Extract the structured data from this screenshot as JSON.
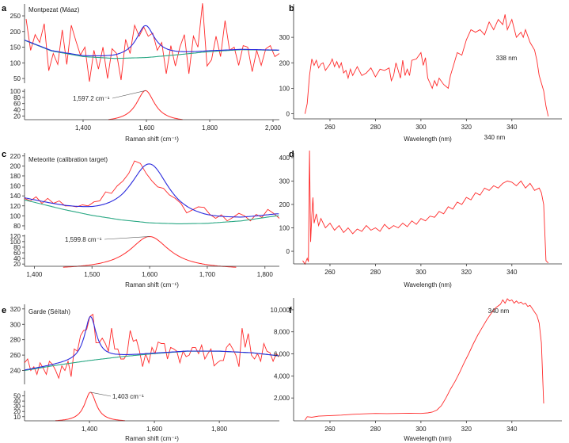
{
  "colors": {
    "raw": "#ff2a2a",
    "fit": "#2b2bdd",
    "baseline": "#2aa884",
    "leader": "#555555"
  },
  "chart_data": [
    {
      "panel": "a",
      "type": "line",
      "title": "Montpezat (Máaz)",
      "xlabel": "Raman shift (cm⁻¹)",
      "xlim": [
        1215,
        2020
      ],
      "ylim_upper": [
        35,
        288
      ],
      "ylim_lower": [
        8,
        108
      ],
      "xticks": [
        1400,
        1600,
        1800,
        2000
      ],
      "xtick_labels": [
        "1,400",
        "1,600",
        "1,800",
        "2,000"
      ],
      "yticks_upper": [
        50,
        100,
        150,
        200,
        250
      ],
      "yticks_lower": [
        20,
        40,
        60,
        80,
        100
      ],
      "raw": {
        "x_range": [
          1220,
          2020
        ],
        "y": [
          240,
          140,
          190,
          165,
          225,
          75,
          130,
          95,
          205,
          95,
          220,
          170,
          125,
          150,
          40,
          140,
          80,
          150,
          50,
          145,
          130,
          45,
          175,
          130,
          220,
          185,
          215,
          185,
          195,
          140,
          165,
          65,
          155,
          90,
          150,
          190,
          65,
          185,
          150,
          290,
          90,
          110,
          185,
          120,
          235,
          140,
          150,
          92,
          155,
          150,
          72,
          140,
          92,
          145,
          155,
          120,
          130
        ]
      },
      "baseline": {
        "x": [
          1215,
          1300,
          1400,
          1500,
          1600,
          1700,
          1800,
          1900,
          2020
        ],
        "y": [
          172,
          138,
          120,
          114,
          117,
          126,
          136,
          142,
          140
        ]
      },
      "peak": {
        "center": 1597.2,
        "amplitude": 102,
        "hwhm": 35,
        "label": "1,597.2 cm⁻¹",
        "lower_range": [
          1480,
          1715
        ]
      }
    },
    {
      "panel": "b",
      "type": "line",
      "xlabel": "Wavelength (nm)",
      "annotation": "338 nm",
      "xlim": [
        244,
        362
      ],
      "ylim": [
        -20,
        431
      ],
      "xticks": [
        260,
        280,
        300,
        320,
        340
      ],
      "xtick_labels": [
        "260",
        "280",
        "300",
        "320",
        "340"
      ],
      "yticks": [
        0,
        100,
        200,
        300
      ],
      "ytick_labels": [
        "0",
        "100",
        "200",
        "300"
      ],
      "raw": {
        "x": [
          249,
          250,
          251,
          252,
          253,
          254,
          255,
          256,
          257,
          258,
          260,
          261,
          262,
          263,
          264,
          265,
          266,
          267,
          268,
          269,
          270,
          272,
          274,
          276,
          278,
          280,
          282,
          284,
          286,
          287,
          288,
          289,
          290,
          291,
          292,
          293,
          294,
          295,
          296,
          298,
          300,
          301,
          302,
          303,
          304,
          305,
          306,
          307,
          308,
          310,
          312,
          313,
          314,
          316,
          318,
          320,
          321,
          322,
          324,
          326,
          328,
          330,
          332,
          334,
          336,
          337,
          338,
          339,
          340,
          342,
          344,
          345,
          346,
          348,
          350,
          351,
          352,
          354,
          355,
          356
        ],
        "y": [
          0,
          40,
          150,
          215,
          190,
          210,
          180,
          195,
          200,
          170,
          195,
          215,
          185,
          205,
          180,
          200,
          160,
          170,
          140,
          175,
          150,
          185,
          150,
          160,
          180,
          145,
          175,
          170,
          180,
          130,
          150,
          200,
          170,
          140,
          210,
          150,
          175,
          150,
          210,
          215,
          240,
          190,
          220,
          140,
          120,
          100,
          130,
          110,
          140,
          115,
          100,
          150,
          180,
          240,
          230,
          290,
          310,
          330,
          320,
          330,
          310,
          360,
          330,
          370,
          350,
          390,
          330,
          350,
          370,
          300,
          320,
          300,
          330,
          280,
          250,
          210,
          150,
          90,
          30,
          -10
        ]
      }
    },
    {
      "panel": "c",
      "type": "line",
      "title": "Meteorite (calibration target)",
      "xlabel": "Raman shift (cm⁻¹)",
      "xlim": [
        1383,
        1825
      ],
      "ylim_upper": [
        72,
        226
      ],
      "ylim_lower": [
        12,
        125
      ],
      "xticks": [
        1400,
        1500,
        1600,
        1700,
        1800
      ],
      "xtick_labels": [
        "1,400",
        "1,500",
        "1,600",
        "1,700",
        "1,800"
      ],
      "yticks_upper": [
        80,
        100,
        120,
        140,
        160,
        180,
        200,
        220
      ],
      "yticks_lower": [
        20,
        40,
        60,
        80,
        100,
        120
      ],
      "raw": {
        "x_range": [
          1383,
          1825
        ],
        "y": [
          135,
          130,
          138,
          125,
          135,
          125,
          130,
          120,
          120,
          118,
          122,
          120,
          128,
          130,
          148,
          145,
          160,
          170,
          185,
          210,
          205,
          185,
          170,
          158,
          155,
          142,
          135,
          125,
          106,
          112,
          118,
          117,
          103,
          95,
          102,
          90,
          97,
          105,
          100,
          90,
          103,
          97,
          113,
          105,
          95
        ]
      },
      "baseline": {
        "x": [
          1383,
          1450,
          1500,
          1550,
          1600,
          1650,
          1700,
          1760,
          1820
        ],
        "y": [
          132,
          113,
          101,
          92,
          86,
          84,
          85,
          90,
          100
        ]
      },
      "peak": {
        "center": 1599.8,
        "amplitude": 118,
        "hwhm": 42,
        "label": "1,599.8 cm⁻¹",
        "lower_range": [
          1450,
          1750
        ]
      }
    },
    {
      "panel": "d",
      "type": "line",
      "xlabel": "Wavelength (nm)",
      "annotation": "340 nm",
      "xlim": [
        244,
        362
      ],
      "ylim": [
        -54,
        420
      ],
      "xticks": [
        260,
        280,
        300,
        320,
        340
      ],
      "xtick_labels": [
        "260",
        "280",
        "300",
        "320",
        "340"
      ],
      "yticks": [
        0,
        100,
        200,
        300,
        400
      ],
      "ytick_labels": [
        "0",
        "100",
        "200",
        "300",
        "400"
      ],
      "raw": {
        "x": [
          248,
          249,
          250,
          250.5,
          251,
          251.5,
          252,
          252.5,
          253,
          254,
          255,
          256,
          258,
          260,
          262,
          264,
          266,
          268,
          270,
          272,
          274,
          276,
          278,
          280,
          282,
          284,
          286,
          288,
          290,
          292,
          294,
          296,
          298,
          300,
          302,
          304,
          306,
          308,
          310,
          312,
          314,
          316,
          318,
          320,
          322,
          324,
          326,
          328,
          330,
          332,
          334,
          336,
          338,
          340,
          342,
          344,
          346,
          348,
          350,
          352,
          353,
          354,
          355,
          356
        ],
        "y": [
          -40,
          -55,
          -30,
          -45,
          430,
          40,
          150,
          230,
          120,
          160,
          110,
          140,
          100,
          120,
          90,
          110,
          80,
          100,
          75,
          95,
          85,
          110,
          90,
          100,
          85,
          115,
          95,
          110,
          100,
          120,
          105,
          130,
          115,
          140,
          130,
          150,
          145,
          170,
          160,
          190,
          180,
          210,
          200,
          230,
          220,
          250,
          240,
          270,
          260,
          280,
          270,
          290,
          300,
          295,
          280,
          300,
          270,
          290,
          260,
          270,
          250,
          200,
          -40,
          -50
        ]
      }
    },
    {
      "panel": "e",
      "type": "line",
      "title": "Garde (Séítah)",
      "xlabel": "Raman shift (cm⁻¹)",
      "xlim": [
        1200,
        1985
      ],
      "ylim_upper": [
        222,
        326
      ],
      "ylim_lower": [
        2,
        60
      ],
      "xticks": [
        1400,
        1600,
        1800
      ],
      "xtick_labels": [
        "1,400",
        "1,600",
        "1,800"
      ],
      "yticks_upper": [
        240,
        260,
        280,
        300,
        320
      ],
      "yticks_lower": [
        10,
        20,
        30,
        40,
        50
      ],
      "raw": {
        "x_range": [
          1200,
          1985
        ],
        "y": [
          250,
          255,
          240,
          245,
          235,
          250,
          243,
          235,
          252,
          248,
          240,
          230,
          246,
          240,
          252,
          232,
          268,
          265,
          285,
          292,
          293,
          310,
          313,
          276,
          276,
          282,
          275,
          265,
          295,
          268,
          268,
          255,
          255,
          262,
          292,
          278,
          280,
          265,
          245,
          262,
          250,
          270,
          262,
          277,
          275,
          275,
          255,
          270,
          268,
          265,
          250,
          265,
          258,
          260,
          270,
          270,
          262,
          273,
          255,
          262,
          268,
          246,
          250,
          253,
          253,
          270,
          275,
          268,
          260,
          245,
          295,
          270,
          288,
          260,
          255,
          262,
          252,
          275,
          265,
          263,
          252,
          262,
          258
        ]
      },
      "baseline": {
        "x": [
          1200,
          1300,
          1400,
          1500,
          1600,
          1700,
          1800,
          1900,
          1985
        ],
        "y": [
          240,
          247,
          253,
          258,
          262,
          265,
          265,
          263,
          259
        ]
      },
      "peak": {
        "center": 1403,
        "amplitude": 57,
        "hwhm": 22,
        "label": "1,403 cm⁻¹",
        "lower_range": [
          1295,
          1510
        ]
      }
    },
    {
      "panel": "f",
      "type": "line",
      "xlabel": "Wavelength (nm)",
      "annotation": "340 nm",
      "xlim": [
        244,
        362
      ],
      "ylim": [
        -71,
        11071
      ],
      "xticks": [
        260,
        280,
        300,
        320,
        340
      ],
      "xtick_labels": [
        "260",
        "280",
        "300",
        "320",
        "340"
      ],
      "yticks": [
        2000,
        4000,
        6000,
        8000,
        10000
      ],
      "ytick_labels": [
        "2,000",
        "4,000",
        "6,000",
        "8,000",
        "10,000"
      ],
      "raw": {
        "x": [
          249,
          250,
          252,
          255,
          260,
          265,
          270,
          275,
          280,
          285,
          290,
          295,
          300,
          303,
          305,
          307,
          309,
          311,
          313,
          315,
          317,
          319,
          321,
          323,
          325,
          327,
          329,
          331,
          333,
          335,
          336,
          337,
          338,
          339,
          340,
          341,
          342,
          343,
          344,
          345,
          346,
          347,
          348,
          349,
          350,
          351,
          352,
          353,
          354
        ],
        "y": [
          0,
          300,
          250,
          350,
          400,
          450,
          520,
          560,
          600,
          580,
          600,
          620,
          600,
          650,
          720,
          900,
          1300,
          2000,
          2800,
          3500,
          4300,
          5200,
          6000,
          6900,
          7700,
          8400,
          9100,
          9700,
          10200,
          10500,
          10900,
          10600,
          11000,
          10800,
          10900,
          10600,
          10800,
          10600,
          10700,
          10500,
          10600,
          10300,
          10400,
          10100,
          9800,
          9500,
          8800,
          7000,
          1500
        ]
      }
    }
  ]
}
